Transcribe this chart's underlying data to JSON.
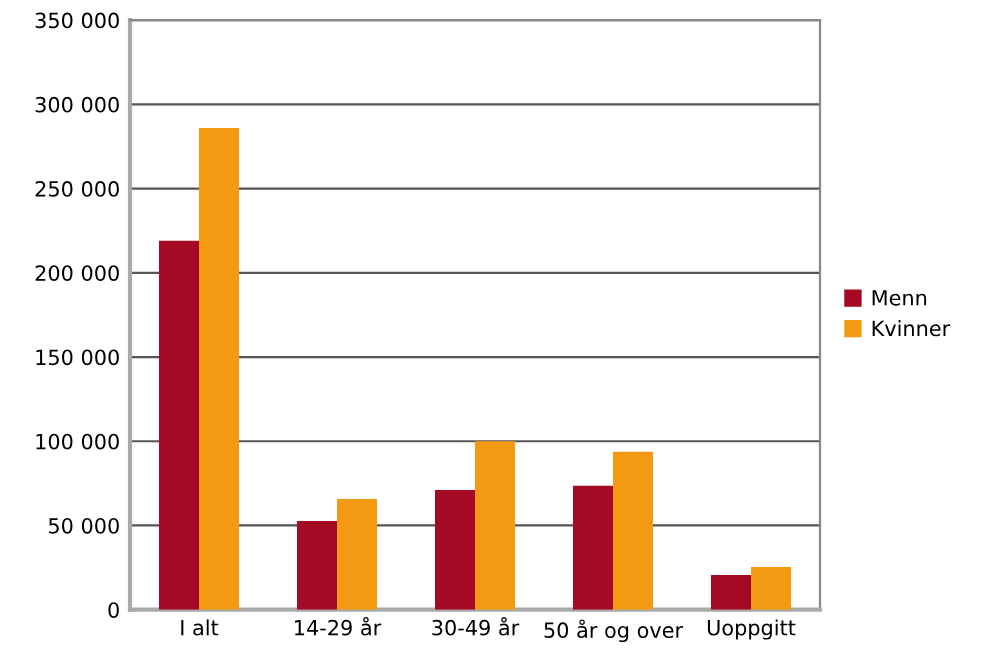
{
  "chart_data": {
    "type": "bar",
    "categories": [
      "I alt",
      "14-29 år",
      "30-49 år",
      "50 år og over",
      "Uoppgitt"
    ],
    "series": [
      {
        "name": "Menn",
        "color": "#a50a24",
        "values": [
          219000,
          52600,
          71000,
          73600,
          20600
        ]
      },
      {
        "name": "Kvinner",
        "color": "#f49a12",
        "values": [
          286000,
          65700,
          100000,
          93800,
          25300
        ]
      }
    ],
    "ylim": [
      0,
      350000
    ],
    "yticks": [
      {
        "value": 0,
        "label": "0"
      },
      {
        "value": 50000,
        "label": "50 000"
      },
      {
        "value": 100000,
        "label": "100 000"
      },
      {
        "value": 150000,
        "label": "150 000"
      },
      {
        "value": 200000,
        "label": "200 000"
      },
      {
        "value": 250000,
        "label": "250 000"
      },
      {
        "value": 300000,
        "label": "300 000"
      },
      {
        "value": 350000,
        "label": "350 000"
      }
    ],
    "grid": "y",
    "legend": "right"
  }
}
